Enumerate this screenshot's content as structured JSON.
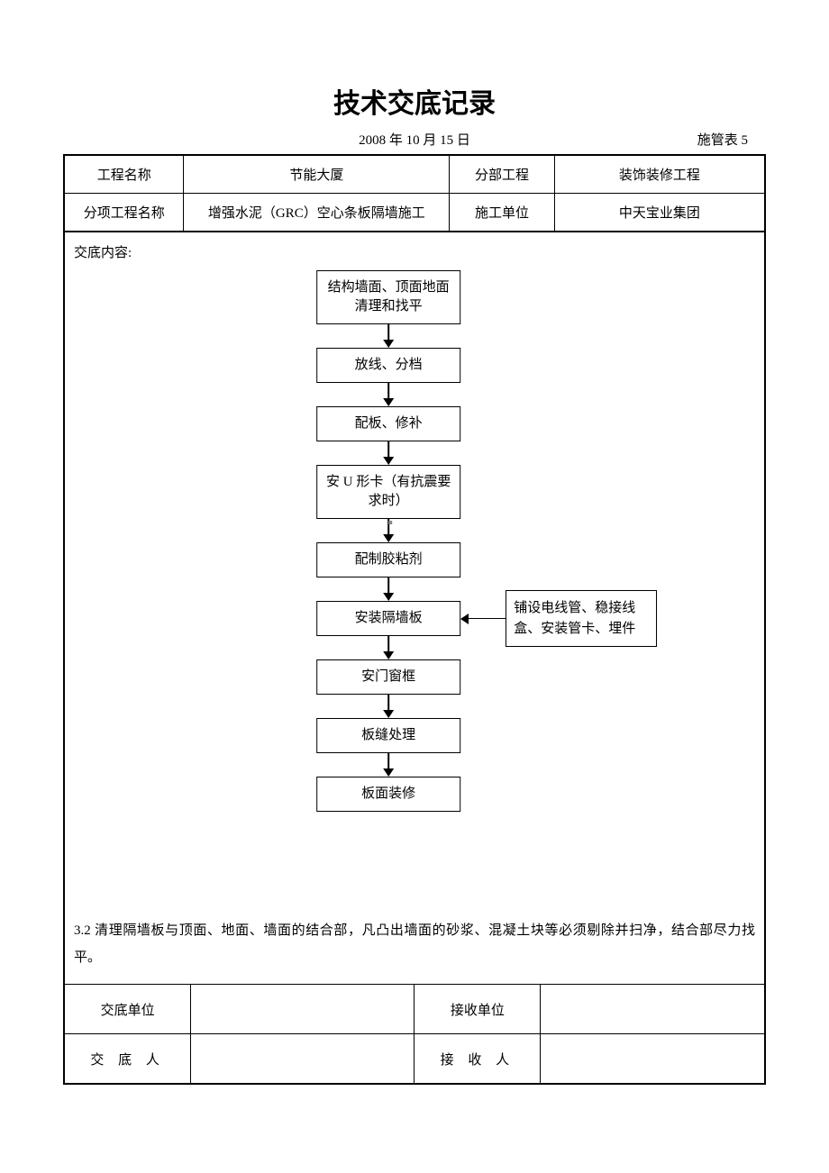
{
  "title": "技术交底记录",
  "date": "2008 年 10 月 15 日",
  "form_no": "施管表 5",
  "info": {
    "r1c1": "工程名称",
    "r1c2": "节能大厦",
    "r1c3": "分部工程",
    "r1c4": "装饰装修工程",
    "r2c1": "分项工程名称",
    "r2c2": "增强水泥（GRC）空心条板隔墙施工",
    "r2c3": "施工单位",
    "r2c4": "中天宝业集团"
  },
  "content_label": "交底内容:",
  "flow": {
    "n1": "结构墙面、顶面地面清理和找平",
    "n2": "放线、分档",
    "n3": "配板、修补",
    "n4": "安 U 形卡（有抗震要求时）",
    "n5": "配制胶粘剂",
    "n6": "安装隔墙板",
    "n7": "安门窗框",
    "n8": "板缝处理",
    "n9": "板面装修",
    "side": "铺设电线管、稳接线盒、安装管卡、埋件"
  },
  "paragraph": "3.2 清理隔墙板与顶面、地面、墙面的结合部，凡凸出墙面的砂浆、混凝土块等必须剔除并扫净，结合部尽力找平。",
  "sig": {
    "a1": "交底单位",
    "a2": "接收单位",
    "b1": "交 底 人",
    "b2": "接 收 人"
  },
  "colors": {
    "line": "#000000",
    "bg": "#ffffff"
  }
}
